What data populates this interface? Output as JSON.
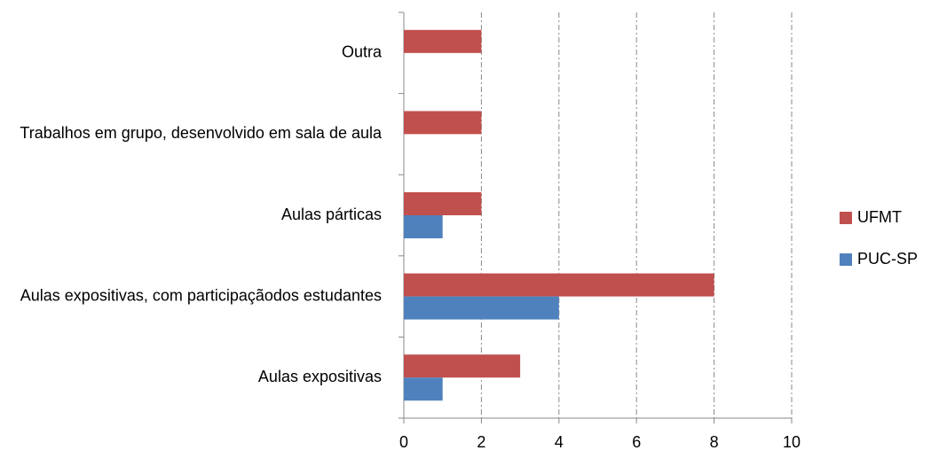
{
  "chart_data": {
    "type": "bar",
    "orientation": "horizontal",
    "categories": [
      "Aulas expositivas",
      "Aulas expositivas, com participaçãodos estudantes",
      "Aulas párticas",
      "Trabalhos em grupo, desenvolvido em sala de aula",
      "Outra"
    ],
    "series": [
      {
        "name": "UFMT",
        "color": "#c0504d",
        "values": [
          3,
          8,
          2,
          2,
          2
        ]
      },
      {
        "name": "PUC-SP",
        "color": "#4f81bd",
        "values": [
          1,
          4,
          1,
          0,
          0
        ]
      }
    ],
    "xlim": [
      0,
      10
    ],
    "xticks": [
      0,
      2,
      4,
      6,
      8,
      10
    ],
    "grid": true,
    "legend": "right"
  }
}
